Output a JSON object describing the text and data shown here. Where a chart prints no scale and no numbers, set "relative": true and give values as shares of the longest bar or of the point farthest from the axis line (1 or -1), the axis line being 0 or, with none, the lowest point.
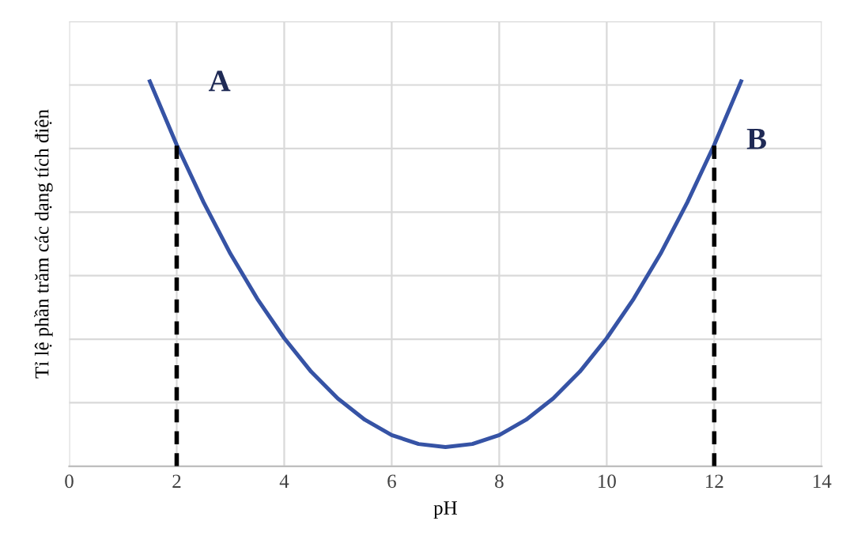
{
  "chart_data": {
    "type": "line",
    "relative": true,
    "xlabel": "pH",
    "ylabel": "Tỉ lệ phần trăm các dạng tích điện",
    "xlim": [
      0,
      14
    ],
    "xticks": [
      0,
      2,
      4,
      6,
      8,
      10,
      12,
      14
    ],
    "grid": true,
    "series": [
      {
        "color": "#3653a5",
        "line_style": "solid",
        "x": [
          1.5,
          2,
          2.5,
          3,
          3.5,
          4,
          4.5,
          5,
          5.5,
          6,
          6.5,
          7,
          7.5,
          8,
          8.5,
          9,
          9.5,
          10,
          10.5,
          11,
          11.5,
          12,
          12.5
        ],
        "values": [
          1.0,
          0.835,
          0.686,
          0.552,
          0.435,
          0.333,
          0.246,
          0.176,
          0.121,
          0.081,
          0.058,
          0.05,
          0.058,
          0.081,
          0.121,
          0.176,
          0.246,
          0.333,
          0.435,
          0.552,
          0.686,
          0.835,
          1.0
        ]
      },
      {
        "color": "#000000",
        "line_style": "dashed",
        "x": [
          2,
          2,
          2,
          2,
          2
        ],
        "values": [
          0,
          0.2,
          0.4,
          0.6,
          0.835
        ]
      },
      {
        "color": "#000000",
        "line_style": "dashed",
        "x": [
          12,
          12,
          12,
          12,
          12
        ],
        "values": [
          0,
          0.2,
          0.4,
          0.6,
          0.835
        ]
      }
    ],
    "annotations": [
      "A",
      "B"
    ]
  }
}
